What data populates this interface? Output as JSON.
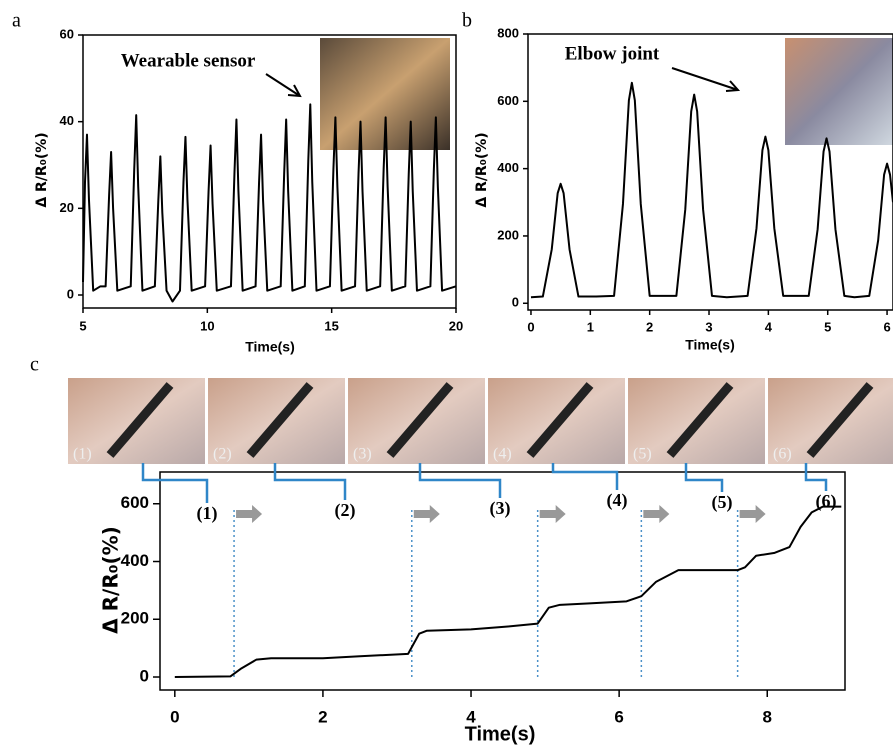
{
  "chart_data": [
    {
      "type": "line",
      "panel_label": "a",
      "annotation": "Wearable sensor",
      "xlabel": "Time(s)",
      "ylabel": "Δ R/R₀(%)",
      "color": "#000000",
      "x": [
        5.0,
        5.08,
        5.16,
        5.24,
        5.41,
        5.7,
        5.91,
        6.05,
        6.13,
        6.21,
        6.38,
        6.92,
        7.06,
        7.14,
        7.22,
        7.39,
        7.89,
        8.03,
        8.11,
        8.19,
        8.36,
        8.6,
        8.9,
        9.04,
        9.12,
        9.2,
        9.37,
        9.91,
        10.05,
        10.13,
        10.21,
        10.38,
        10.95,
        11.09,
        11.17,
        11.25,
        11.42,
        11.94,
        12.08,
        12.16,
        12.24,
        12.41,
        12.95,
        13.09,
        13.17,
        13.25,
        13.42,
        13.92,
        14.06,
        14.14,
        14.22,
        14.39,
        14.93,
        15.07,
        15.15,
        15.23,
        15.4,
        15.94,
        16.08,
        16.16,
        16.24,
        16.41,
        16.95,
        17.09,
        17.17,
        17.25,
        17.42,
        17.96,
        18.1,
        18.18,
        18.26,
        18.43,
        18.97,
        19.11,
        19.19,
        19.27,
        19.44,
        20.0
      ],
      "values": [
        3,
        26,
        37,
        22,
        1,
        2,
        2,
        23,
        33,
        20,
        1,
        2,
        29,
        41.5,
        25,
        1,
        2,
        22,
        32,
        19,
        1,
        -1.5,
        1,
        26,
        36.5,
        22,
        1,
        2,
        24,
        34.5,
        21,
        1,
        2,
        28,
        40.5,
        24,
        1,
        2,
        26,
        37,
        22,
        1,
        2,
        28,
        40.5,
        24,
        1,
        2,
        31,
        44,
        26,
        1,
        2,
        29,
        41,
        25,
        1,
        2,
        28,
        40,
        24,
        1,
        2,
        29,
        41,
        25,
        1,
        2,
        28,
        40,
        24,
        1,
        2,
        29,
        41,
        25,
        1,
        2
      ],
      "xlim": [
        5,
        20
      ],
      "ylim": [
        -3,
        60
      ],
      "xticks": [
        5,
        10,
        15,
        20
      ],
      "yticks": [
        0,
        20,
        40,
        60
      ]
    },
    {
      "type": "line",
      "panel_label": "b",
      "annotation": "Elbow joint",
      "xlabel": "Time(s)",
      "ylabel": "Δ R/R₀(%)",
      "color": "#000000",
      "x": [
        0,
        0.2,
        0.35,
        0.45,
        0.5,
        0.55,
        0.65,
        0.8,
        1.1,
        1.4,
        1.55,
        1.65,
        1.7,
        1.75,
        1.85,
        2.0,
        2.45,
        2.6,
        2.7,
        2.75,
        2.8,
        2.9,
        3.05,
        3.3,
        3.65,
        3.8,
        3.9,
        3.95,
        4.0,
        4.1,
        4.25,
        4.68,
        4.83,
        4.93,
        4.98,
        5.03,
        5.13,
        5.28,
        5.45,
        5.7,
        5.85,
        5.95,
        6.0,
        6.05,
        6.1
      ],
      "values": [
        18,
        20,
        160,
        327,
        355,
        327,
        160,
        20,
        20,
        22,
        295,
        603,
        655,
        603,
        295,
        22,
        22,
        279,
        570,
        620,
        570,
        279,
        22,
        18,
        22,
        223,
        455,
        495,
        455,
        223,
        22,
        22,
        220,
        451,
        490,
        451,
        220,
        22,
        18,
        22,
        187,
        382,
        415,
        382,
        300
      ],
      "xlim": [
        -0.05,
        6.1
      ],
      "ylim": [
        -20,
        800
      ],
      "xticks": [
        0,
        1,
        2,
        3,
        4,
        5,
        6
      ],
      "yticks": [
        0,
        200,
        400,
        600,
        800
      ]
    },
    {
      "type": "line",
      "panel_label": "c",
      "xlabel": "Time(s)",
      "ylabel": "Δ R/R₀(%)",
      "color": "#000000",
      "photo_labels": [
        "(1)",
        "(2)",
        "(3)",
        "(4)",
        "(5)",
        "(6)"
      ],
      "step_labels": [
        "(1)",
        "(2)",
        "(3)",
        "(4)",
        "(5)",
        "(6)"
      ],
      "step_times": [
        0.8,
        3.2,
        4.9,
        6.3,
        7.6
      ],
      "x": [
        0,
        0.75,
        0.9,
        1.1,
        1.3,
        2,
        2.5,
        3.15,
        3.3,
        3.4,
        4,
        4.5,
        4.9,
        5.05,
        5.2,
        5.6,
        6.1,
        6.3,
        6.5,
        6.8,
        7.1,
        7.6,
        7.7,
        7.85,
        8.1,
        8.3,
        8.45,
        8.6,
        8.75,
        9
      ],
      "values": [
        0,
        2,
        30,
        60,
        65,
        65,
        72,
        80,
        150,
        160,
        165,
        175,
        185,
        240,
        250,
        255,
        262,
        280,
        330,
        370,
        370,
        370,
        380,
        420,
        430,
        450,
        520,
        570,
        590,
        590
      ],
      "xlim": [
        -0.2,
        9.05
      ],
      "ylim": [
        -45,
        710
      ],
      "xticks": [
        0,
        2,
        4,
        6,
        8
      ],
      "yticks": [
        0,
        200,
        400,
        600
      ]
    }
  ]
}
